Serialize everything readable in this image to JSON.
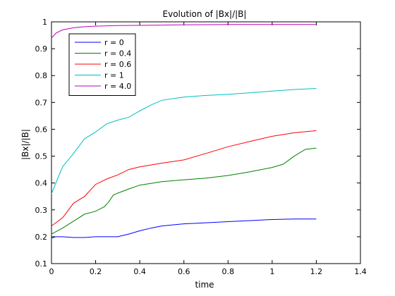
{
  "chart_data": {
    "type": "line",
    "title": "Evolution of |Bx|/|B|",
    "xlabel": "time",
    "ylabel": "|Bx|/|B|",
    "xlim": [
      0,
      1.4
    ],
    "ylim": [
      0.1,
      1
    ],
    "xticks": [
      "0",
      "0.2",
      "0.4",
      "0.6",
      "0.8",
      "1",
      "1.2",
      "1.4"
    ],
    "yticks": [
      "0.1",
      "0.2",
      "0.3",
      "0.4",
      "0.5",
      "0.6",
      "0.7",
      "0.8",
      "0.9",
      "1"
    ],
    "grid": false,
    "legend_position": "top-left",
    "series": [
      {
        "name": "r = 0",
        "color": "#0000ff",
        "x": [
          0,
          0.02,
          0.05,
          0.1,
          0.15,
          0.2,
          0.25,
          0.3,
          0.35,
          0.4,
          0.45,
          0.5,
          0.6,
          0.7,
          0.8,
          0.9,
          1.0,
          1.1,
          1.2
        ],
        "y": [
          0.195,
          0.2,
          0.2,
          0.197,
          0.197,
          0.2,
          0.2,
          0.2,
          0.21,
          0.222,
          0.232,
          0.24,
          0.248,
          0.252,
          0.256,
          0.26,
          0.264,
          0.266,
          0.266
        ]
      },
      {
        "name": "r = 0.4",
        "color": "#008000",
        "x": [
          0,
          0.05,
          0.1,
          0.15,
          0.2,
          0.24,
          0.26,
          0.28,
          0.3,
          0.35,
          0.4,
          0.5,
          0.6,
          0.7,
          0.8,
          0.9,
          1.0,
          1.05,
          1.1,
          1.15,
          1.2
        ],
        "y": [
          0.21,
          0.232,
          0.258,
          0.284,
          0.295,
          0.312,
          0.33,
          0.355,
          0.362,
          0.378,
          0.392,
          0.405,
          0.412,
          0.418,
          0.428,
          0.442,
          0.458,
          0.47,
          0.5,
          0.525,
          0.53
        ]
      },
      {
        "name": "r = 0.6",
        "color": "#ff0000",
        "x": [
          0,
          0.05,
          0.1,
          0.15,
          0.2,
          0.25,
          0.3,
          0.35,
          0.4,
          0.5,
          0.6,
          0.7,
          0.8,
          0.9,
          1.0,
          1.1,
          1.2
        ],
        "y": [
          0.24,
          0.27,
          0.325,
          0.35,
          0.395,
          0.415,
          0.43,
          0.45,
          0.46,
          0.474,
          0.486,
          0.51,
          0.535,
          0.555,
          0.574,
          0.587,
          0.595
        ]
      },
      {
        "name": "r = 1",
        "color": "#00bfbf",
        "x": [
          0,
          0.03,
          0.05,
          0.08,
          0.1,
          0.15,
          0.2,
          0.25,
          0.3,
          0.35,
          0.4,
          0.45,
          0.5,
          0.6,
          0.7,
          0.8,
          0.9,
          1.0,
          1.1,
          1.2
        ],
        "y": [
          0.36,
          0.42,
          0.46,
          0.49,
          0.51,
          0.565,
          0.59,
          0.62,
          0.634,
          0.645,
          0.668,
          0.69,
          0.708,
          0.72,
          0.726,
          0.73,
          0.736,
          0.742,
          0.748,
          0.752
        ]
      },
      {
        "name": "r = 4.0",
        "color": "#bf00bf",
        "x": [
          0,
          0.02,
          0.05,
          0.1,
          0.15,
          0.2,
          0.3,
          0.4,
          0.5,
          0.6,
          0.8,
          1.0,
          1.2
        ],
        "y": [
          0.94,
          0.958,
          0.97,
          0.978,
          0.982,
          0.984,
          0.986,
          0.987,
          0.988,
          0.989,
          0.99,
          0.99,
          0.99
        ]
      }
    ]
  }
}
